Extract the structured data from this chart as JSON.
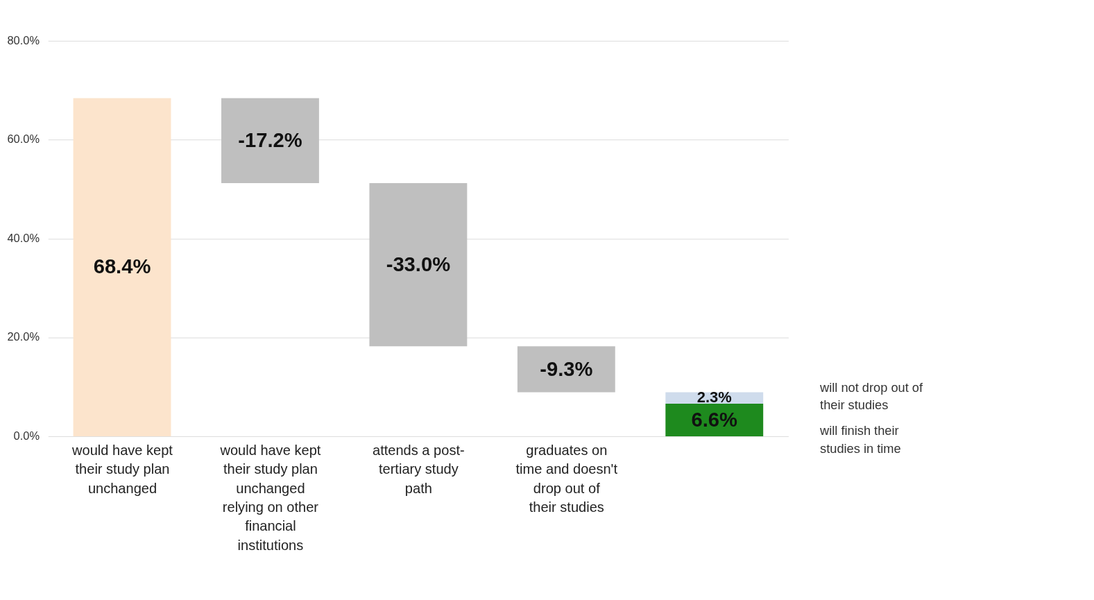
{
  "chart_data": {
    "type": "bar",
    "categories": [
      "would have kept their study plan unchanged",
      "would have kept their study plan unchanged relying on other financial institutions",
      "attends a post-tertiary study path",
      "graduates on time and doesn't drop out of their studies",
      null
    ],
    "series": [
      {
        "colors": [
          "#fce4cc",
          "#bfbfbf",
          "#bfbfbf",
          "#bfbfbf",
          "#1e8a1e"
        ],
        "base": [
          0,
          68.4,
          51.2,
          18.2,
          0
        ],
        "values": [
          68.4,
          -17.2,
          -33.0,
          -9.3,
          6.6
        ],
        "value_labels": [
          "68.4%",
          "-17.2%",
          "-33.0%",
          "-9.3%",
          "6.6%"
        ]
      },
      {
        "colors": [
          null,
          null,
          null,
          null,
          "#cfdcec"
        ],
        "base": [
          null,
          null,
          null,
          null,
          6.6
        ],
        "values": [
          null,
          null,
          null,
          null,
          2.3
        ],
        "value_labels": [
          null,
          null,
          null,
          null,
          "2.3%"
        ]
      }
    ],
    "ylim": [
      0,
      80
    ],
    "yticks": [
      {
        "value": 0,
        "label": "0.0%"
      },
      {
        "value": 20,
        "label": "20.0%"
      },
      {
        "value": 40,
        "label": "40.0%"
      },
      {
        "value": 60,
        "label": "60.0%"
      },
      {
        "value": 80,
        "label": "80.0%"
      }
    ],
    "grid": "y",
    "annotations": [
      "will not drop out of their studies",
      "will finish their studies in time"
    ]
  }
}
